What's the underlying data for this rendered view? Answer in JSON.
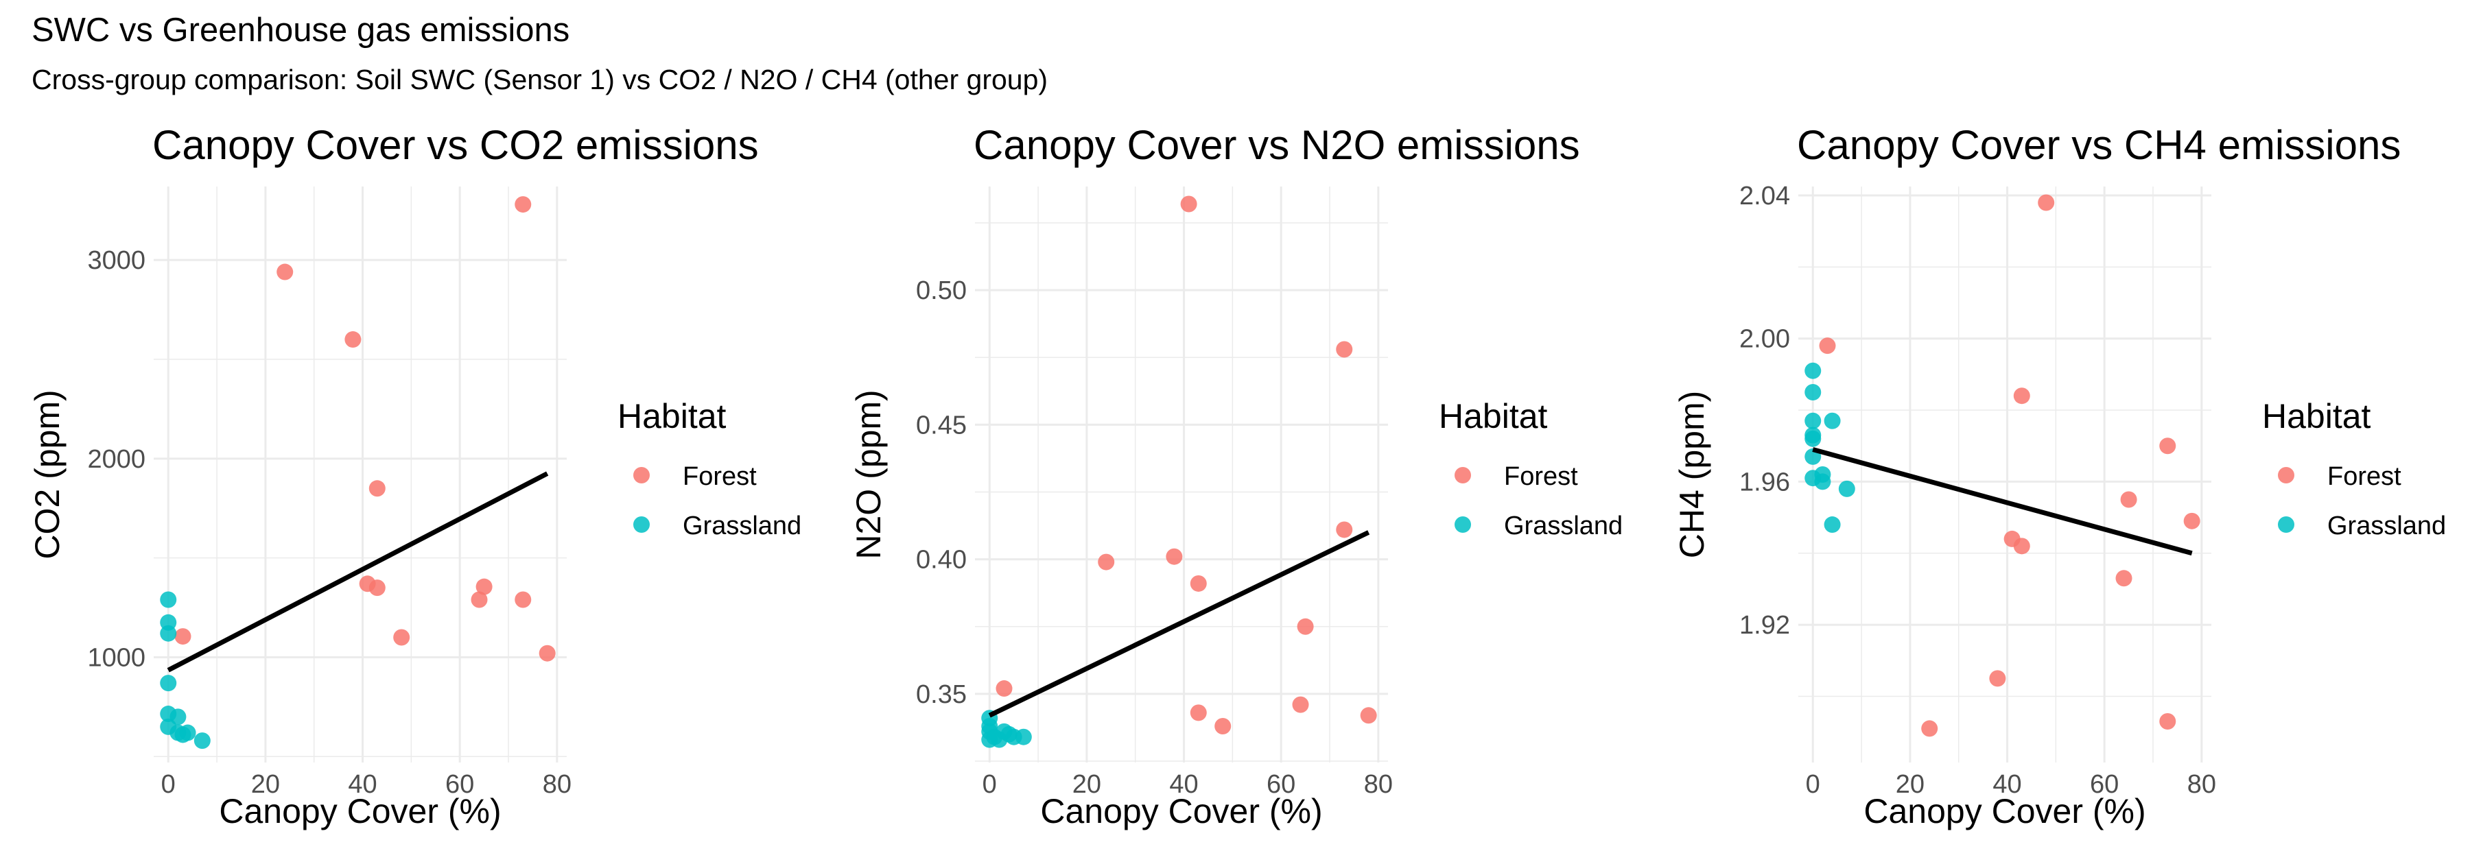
{
  "title": "SWC vs Greenhouse gas emissions",
  "subtitle": "Cross-group comparison: Soil SWC (Sensor 1) vs CO2 / N2O / CH4 (other group)",
  "colors": {
    "Forest": "#f8766d",
    "Grassland": "#00bfc4",
    "fit": "#000000",
    "grid": "#ebebeb"
  },
  "chart_data": [
    {
      "type": "scatter",
      "title": "Canopy Cover vs CO2 emissions",
      "xlabel": "Canopy Cover (%)",
      "ylabel": "CO2 (ppm)",
      "xlim": [
        -3,
        82
      ],
      "ylim": [
        470,
        3370
      ],
      "xticks": [
        0,
        20,
        40,
        60,
        80
      ],
      "yticks": [
        1000,
        2000,
        3000
      ],
      "legend": {
        "title": "Habitat",
        "position": "right"
      },
      "series": [
        {
          "name": "Forest",
          "points": [
            [
              73,
              3280
            ],
            [
              24,
              2940
            ],
            [
              38,
              2600
            ],
            [
              43,
              1850
            ],
            [
              41,
              1370
            ],
            [
              43,
              1350
            ],
            [
              65,
              1355
            ],
            [
              64,
              1290
            ],
            [
              73,
              1290
            ],
            [
              3,
              1105
            ],
            [
              48,
              1100
            ],
            [
              78,
              1020
            ]
          ]
        },
        {
          "name": "Grassland",
          "points": [
            [
              0,
              1290
            ],
            [
              0,
              1175
            ],
            [
              0,
              1120
            ],
            [
              0,
              870
            ],
            [
              0,
              715
            ],
            [
              2,
              700
            ],
            [
              0,
              650
            ],
            [
              2,
              620
            ],
            [
              3,
              610
            ],
            [
              4,
              620
            ],
            [
              7,
              580
            ]
          ]
        }
      ],
      "fit": [
        [
          0,
          935
        ],
        [
          78,
          1925
        ]
      ]
    },
    {
      "type": "scatter",
      "title": "Canopy Cover vs N2O emissions",
      "xlabel": "Canopy Cover (%)",
      "ylabel": "N2O (ppm)",
      "xlim": [
        -3,
        82
      ],
      "ylim": [
        0.3245,
        0.5385
      ],
      "xticks": [
        0,
        20,
        40,
        60,
        80
      ],
      "yticks": [
        0.35,
        0.4,
        0.45,
        0.5
      ],
      "legend": {
        "title": "Habitat",
        "position": "right"
      },
      "series": [
        {
          "name": "Forest",
          "points": [
            [
              41,
              0.532
            ],
            [
              73,
              0.478
            ],
            [
              73,
              0.411
            ],
            [
              38,
              0.401
            ],
            [
              24,
              0.399
            ],
            [
              43,
              0.391
            ],
            [
              65,
              0.375
            ],
            [
              3,
              0.352
            ],
            [
              64,
              0.346
            ],
            [
              43,
              0.343
            ],
            [
              78,
              0.342
            ],
            [
              48,
              0.338
            ]
          ]
        },
        {
          "name": "Grassland",
          "points": [
            [
              0,
              0.341
            ],
            [
              0,
              0.338
            ],
            [
              0,
              0.336
            ],
            [
              1,
              0.334
            ],
            [
              3,
              0.336
            ],
            [
              2,
              0.333
            ],
            [
              4,
              0.335
            ],
            [
              5,
              0.334
            ],
            [
              7,
              0.334
            ],
            [
              0,
              0.333
            ]
          ]
        }
      ],
      "fit": [
        [
          0,
          0.342
        ],
        [
          78,
          0.41
        ]
      ]
    },
    {
      "type": "scatter",
      "title": "Canopy Cover vs CH4 emissions",
      "xlabel": "Canopy Cover (%)",
      "ylabel": "CH4 (ppm)",
      "xlim": [
        -3,
        82
      ],
      "ylim": [
        1.8815,
        2.0425
      ],
      "xticks": [
        0,
        20,
        40,
        60,
        80
      ],
      "yticks": [
        1.92,
        1.96,
        2.0,
        2.04
      ],
      "legend": {
        "title": "Habitat",
        "position": "right"
      },
      "series": [
        {
          "name": "Forest",
          "points": [
            [
              48,
              2.038
            ],
            [
              3,
              1.998
            ],
            [
              43,
              1.984
            ],
            [
              73,
              1.97
            ],
            [
              65,
              1.955
            ],
            [
              78,
              1.949
            ],
            [
              41,
              1.944
            ],
            [
              43,
              1.942
            ],
            [
              64,
              1.933
            ],
            [
              38,
              1.905
            ],
            [
              24,
              1.891
            ],
            [
              73,
              1.893
            ]
          ]
        },
        {
          "name": "Grassland",
          "points": [
            [
              0,
              1.991
            ],
            [
              0,
              1.985
            ],
            [
              0,
              1.977
            ],
            [
              4,
              1.977
            ],
            [
              0,
              1.973
            ],
            [
              0,
              1.972
            ],
            [
              0,
              1.967
            ],
            [
              2,
              1.962
            ],
            [
              0,
              1.961
            ],
            [
              2,
              1.96
            ],
            [
              7,
              1.958
            ],
            [
              4,
              1.948
            ]
          ]
        }
      ],
      "fit": [
        [
          0,
          1.969
        ],
        [
          78,
          1.94
        ]
      ]
    }
  ]
}
